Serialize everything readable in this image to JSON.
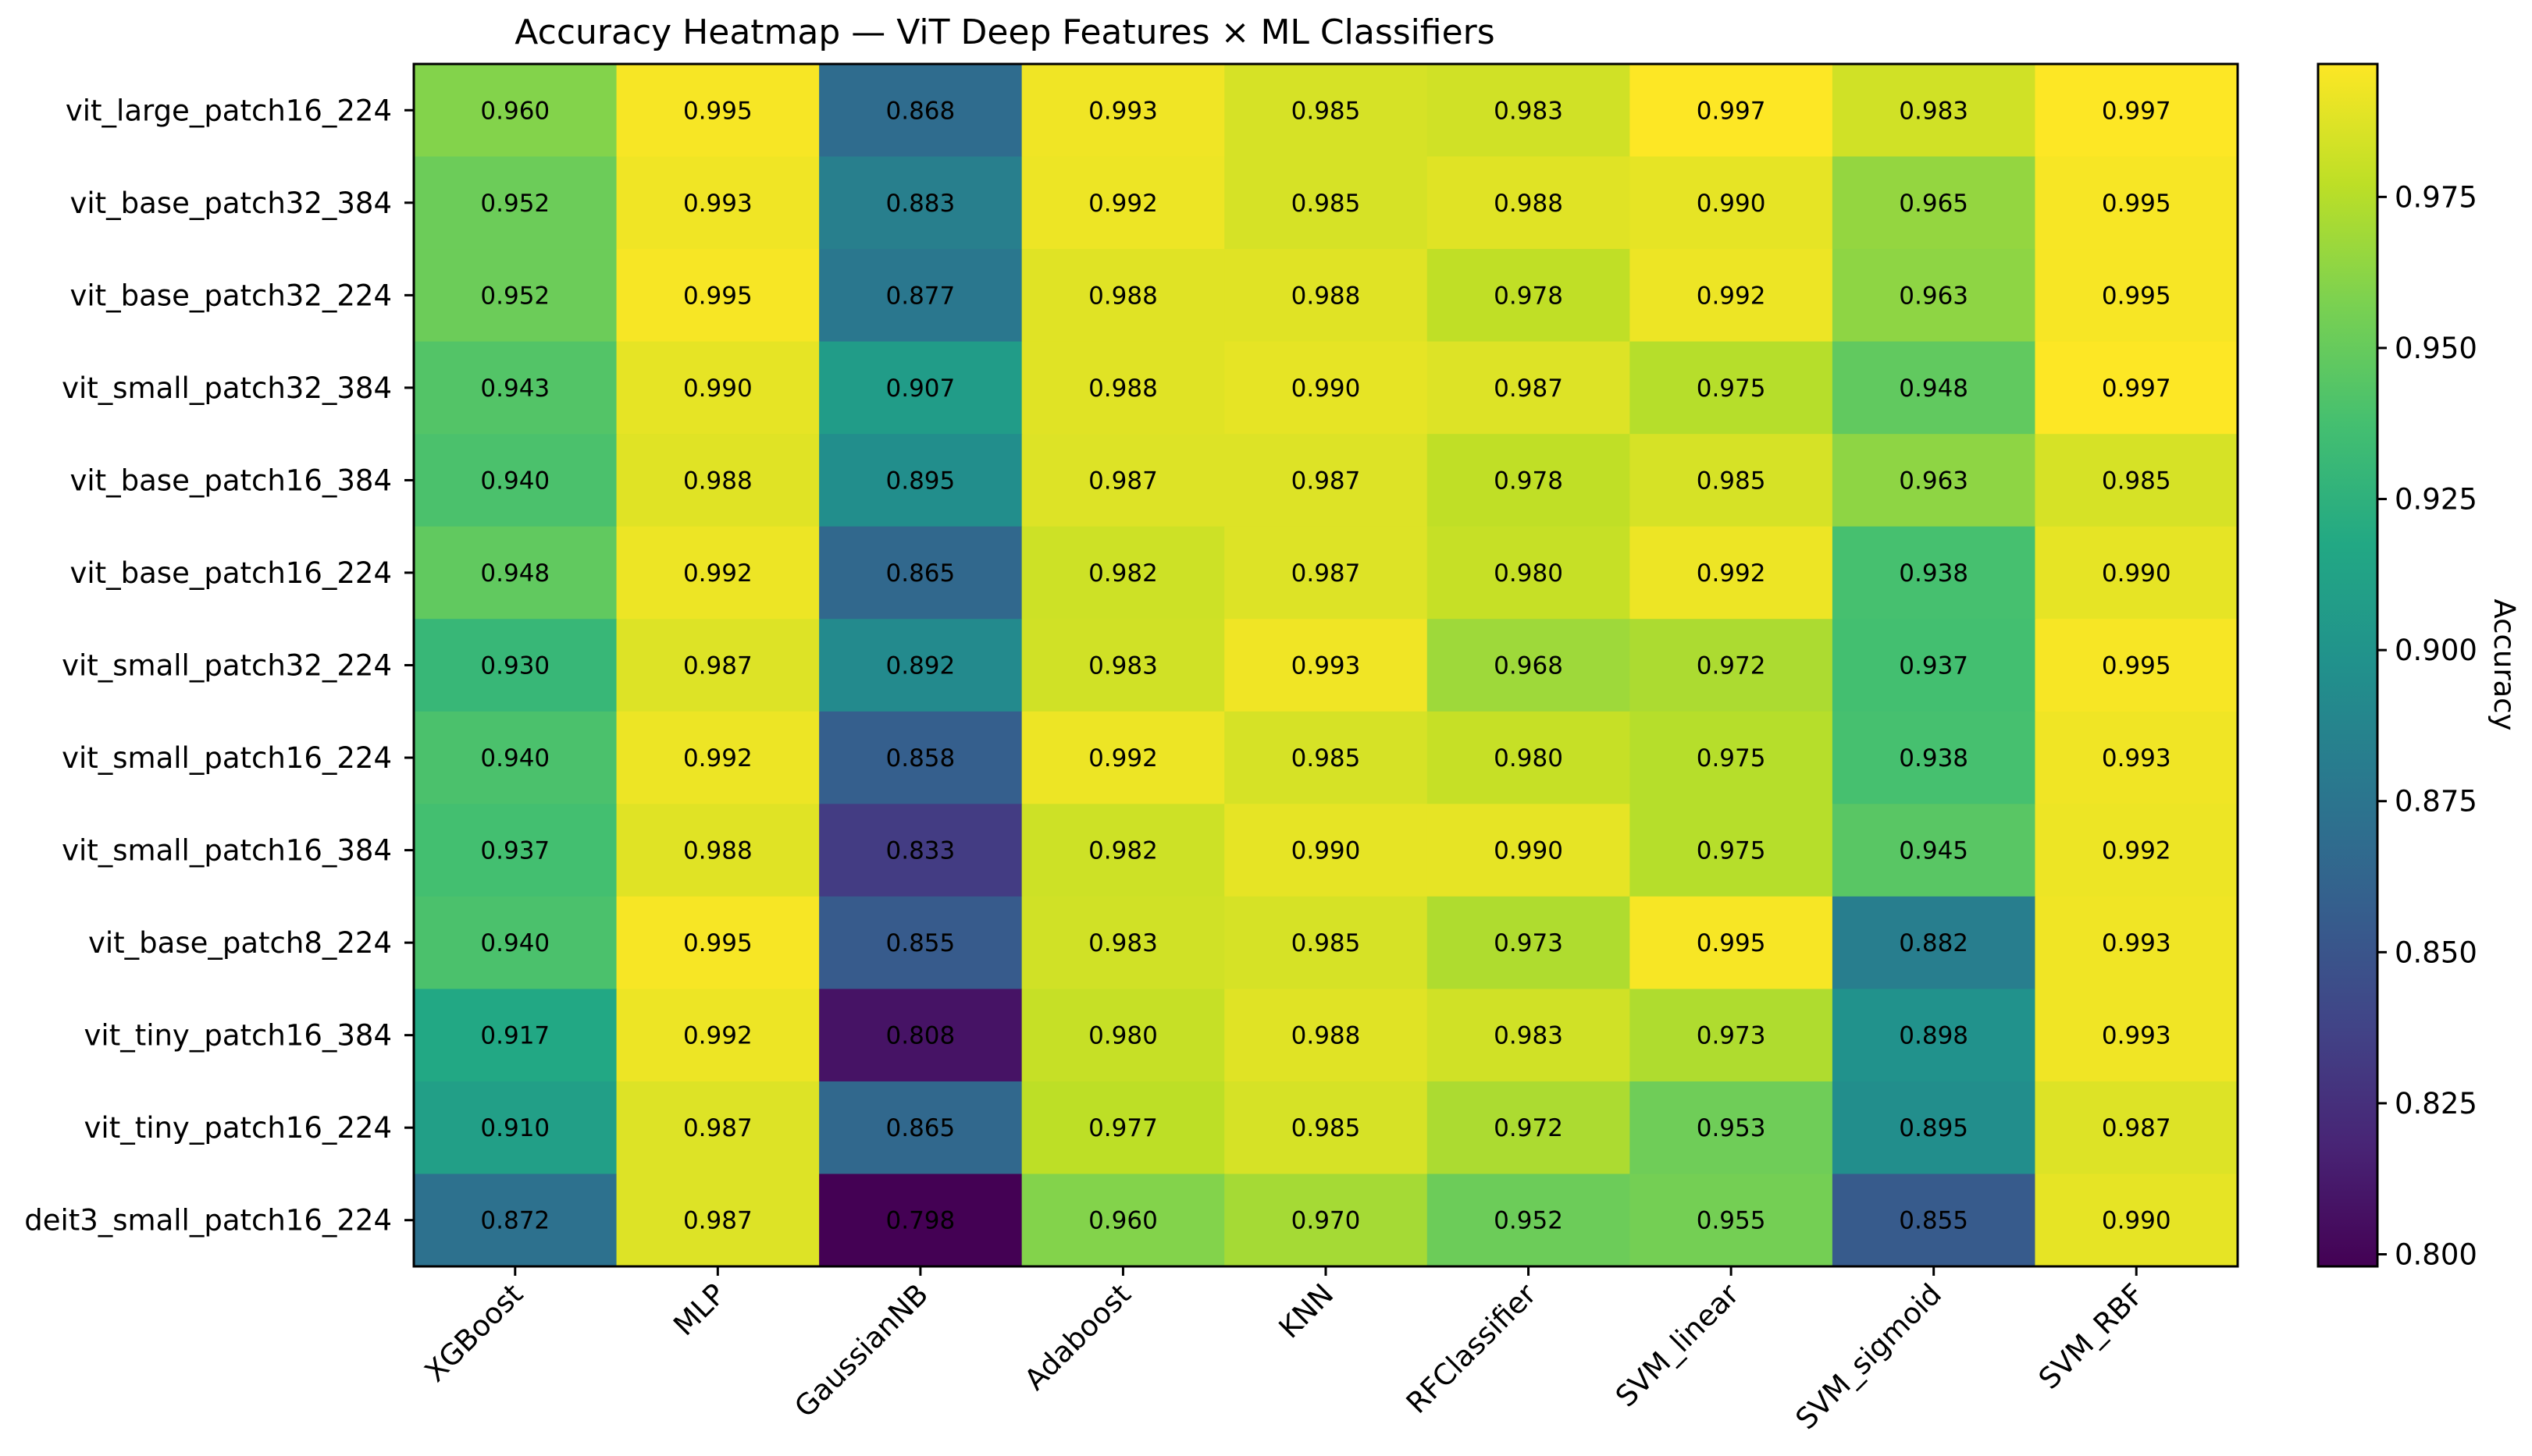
{
  "chart_data": {
    "type": "heatmap",
    "title": "Accuracy Heatmap — ViT Deep Features × ML Classifiers",
    "colorbar_label": "Accuracy",
    "colormap": "viridis",
    "vmin": 0.798,
    "vmax": 0.997,
    "colorbar_ticks": [
      "0.800",
      "0.825",
      "0.850",
      "0.875",
      "0.900",
      "0.925",
      "0.950",
      "0.975"
    ],
    "columns": [
      "XGBoost",
      "MLP",
      "GaussianNB",
      "Adaboost",
      "KNN",
      "RFClassifier",
      "SVM_linear",
      "SVM_sigmoid",
      "SVM_RBF"
    ],
    "rows": [
      {
        "name": "vit_large_patch16_224",
        "values": [
          "0.960",
          "0.995",
          "0.868",
          "0.993",
          "0.985",
          "0.983",
          "0.997",
          "0.983",
          "0.997"
        ]
      },
      {
        "name": "vit_base_patch32_384",
        "values": [
          "0.952",
          "0.993",
          "0.883",
          "0.992",
          "0.985",
          "0.988",
          "0.990",
          "0.965",
          "0.995"
        ]
      },
      {
        "name": "vit_base_patch32_224",
        "values": [
          "0.952",
          "0.995",
          "0.877",
          "0.988",
          "0.988",
          "0.978",
          "0.992",
          "0.963",
          "0.995"
        ]
      },
      {
        "name": "vit_small_patch32_384",
        "values": [
          "0.943",
          "0.990",
          "0.907",
          "0.988",
          "0.990",
          "0.987",
          "0.975",
          "0.948",
          "0.997"
        ]
      },
      {
        "name": "vit_base_patch16_384",
        "values": [
          "0.940",
          "0.988",
          "0.895",
          "0.987",
          "0.987",
          "0.978",
          "0.985",
          "0.963",
          "0.985"
        ]
      },
      {
        "name": "vit_base_patch16_224",
        "values": [
          "0.948",
          "0.992",
          "0.865",
          "0.982",
          "0.987",
          "0.980",
          "0.992",
          "0.938",
          "0.990"
        ]
      },
      {
        "name": "vit_small_patch32_224",
        "values": [
          "0.930",
          "0.987",
          "0.892",
          "0.983",
          "0.993",
          "0.968",
          "0.972",
          "0.937",
          "0.995"
        ]
      },
      {
        "name": "vit_small_patch16_224",
        "values": [
          "0.940",
          "0.992",
          "0.858",
          "0.992",
          "0.985",
          "0.980",
          "0.975",
          "0.938",
          "0.993"
        ]
      },
      {
        "name": "vit_small_patch16_384",
        "values": [
          "0.937",
          "0.988",
          "0.833",
          "0.982",
          "0.990",
          "0.990",
          "0.975",
          "0.945",
          "0.992"
        ]
      },
      {
        "name": "vit_base_patch8_224",
        "values": [
          "0.940",
          "0.995",
          "0.855",
          "0.983",
          "0.985",
          "0.973",
          "0.995",
          "0.882",
          "0.993"
        ]
      },
      {
        "name": "vit_tiny_patch16_384",
        "values": [
          "0.917",
          "0.992",
          "0.808",
          "0.980",
          "0.988",
          "0.983",
          "0.973",
          "0.898",
          "0.993"
        ]
      },
      {
        "name": "vit_tiny_patch16_224",
        "values": [
          "0.910",
          "0.987",
          "0.865",
          "0.977",
          "0.985",
          "0.972",
          "0.953",
          "0.895",
          "0.987"
        ]
      },
      {
        "name": "deit3_small_patch16_224",
        "values": [
          "0.872",
          "0.987",
          "0.798",
          "0.960",
          "0.970",
          "0.952",
          "0.955",
          "0.855",
          "0.990"
        ]
      }
    ]
  }
}
